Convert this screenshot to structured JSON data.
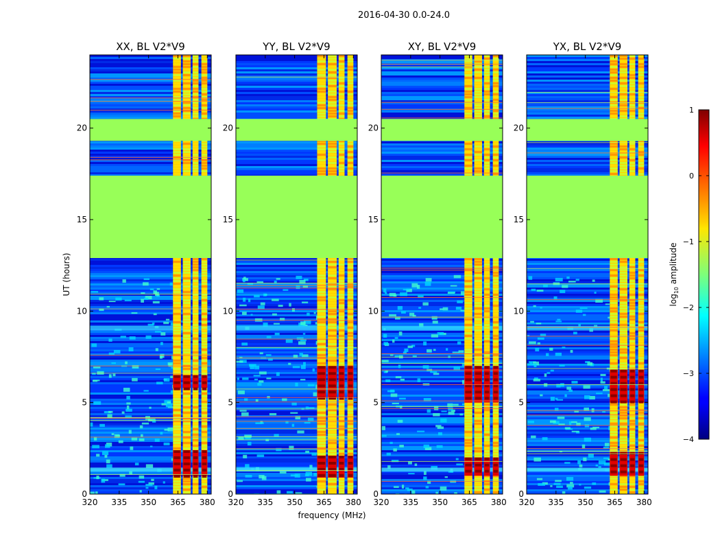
{
  "figure": {
    "suptitle": "2016-04-30 0.0-24.0",
    "xlabel": "frequency (MHz)",
    "ylabel": "UT (hours)",
    "colorbar_label_prefix": "log",
    "colorbar_label_sub": "10",
    "colorbar_label_suffix": " amplitude"
  },
  "chart_data": [
    {
      "type": "heatmap",
      "title": "XX, BL V2*V9",
      "xlabel": "frequency (MHz)",
      "ylabel": "UT (hours)",
      "xlim": [
        320,
        382
      ],
      "ylim": [
        0,
        24
      ],
      "xticks": [
        320,
        335,
        350,
        365,
        380
      ],
      "yticks": [
        0,
        5,
        10,
        15,
        20
      ],
      "rfi_band_mhz": [
        [
          362.5,
          366.5
        ],
        [
          367.5,
          371.5
        ],
        [
          372.5,
          375.5
        ],
        [
          377,
          380
        ]
      ],
      "flagged_hours": [
        [
          12.9,
          17.4
        ],
        [
          19.3,
          20.5
        ]
      ],
      "strong_hours": [
        [
          1.0,
          2.4
        ],
        [
          5.8,
          6.5
        ]
      ],
      "colorscale": "jet",
      "clim_log10": [
        -4,
        1
      ]
    },
    {
      "type": "heatmap",
      "title": "YY, BL V2*V9",
      "xlabel": "frequency (MHz)",
      "ylabel": "UT (hours)",
      "xlim": [
        320,
        382
      ],
      "ylim": [
        0,
        24
      ],
      "xticks": [
        320,
        335,
        350,
        365,
        380
      ],
      "yticks": [
        0,
        5,
        10,
        15,
        20
      ],
      "rfi_band_mhz": [
        [
          361.5,
          366
        ],
        [
          367,
          371.5
        ],
        [
          372.5,
          375.5
        ],
        [
          377,
          380
        ]
      ],
      "flagged_hours": [
        [
          12.9,
          17.4
        ],
        [
          19.3,
          20.5
        ]
      ],
      "strong_hours": [
        [
          0.9,
          2.1
        ],
        [
          5.3,
          7.0
        ]
      ],
      "colorscale": "jet",
      "clim_log10": [
        -4,
        1
      ]
    },
    {
      "type": "heatmap",
      "title": "XY, BL V2*V9",
      "xlabel": "frequency (MHz)",
      "ylabel": "UT (hours)",
      "xlim": [
        320,
        382
      ],
      "ylim": [
        0,
        24
      ],
      "xticks": [
        320,
        335,
        350,
        365,
        380
      ],
      "yticks": [
        0,
        5,
        10,
        15,
        20
      ],
      "rfi_band_mhz": [
        [
          362.5,
          366.5
        ],
        [
          367.5,
          371.5
        ],
        [
          372.5,
          375.5
        ],
        [
          377,
          380
        ]
      ],
      "flagged_hours": [
        [
          12.9,
          17.4
        ],
        [
          19.3,
          20.5
        ]
      ],
      "strong_hours": [
        [
          1.0,
          2.0
        ],
        [
          5.0,
          7.0
        ]
      ],
      "colorscale": "jet",
      "clim_log10": [
        -4,
        1
      ]
    },
    {
      "type": "heatmap",
      "title": "YX, BL V2*V9",
      "xlabel": "frequency (MHz)",
      "ylabel": "UT (hours)",
      "xlim": [
        320,
        382
      ],
      "ylim": [
        0,
        24
      ],
      "xticks": [
        320,
        335,
        350,
        365,
        380
      ],
      "yticks": [
        0,
        5,
        10,
        15,
        20
      ],
      "rfi_band_mhz": [
        [
          362.5,
          366.5
        ],
        [
          367.5,
          371.5
        ],
        [
          372.5,
          375.5
        ],
        [
          377,
          380
        ]
      ],
      "flagged_hours": [
        [
          12.9,
          17.4
        ],
        [
          19.3,
          20.5
        ]
      ],
      "strong_hours": [
        [
          1.0,
          2.3
        ],
        [
          5.0,
          6.8
        ]
      ],
      "colorscale": "jet",
      "clim_log10": [
        -4,
        1
      ]
    }
  ],
  "colorbar": {
    "ticks": [
      1,
      0,
      -1,
      -2,
      -3,
      -4
    ],
    "tick_labels": [
      "1",
      "0",
      "−1",
      "−2",
      "−3",
      "−4"
    ]
  }
}
